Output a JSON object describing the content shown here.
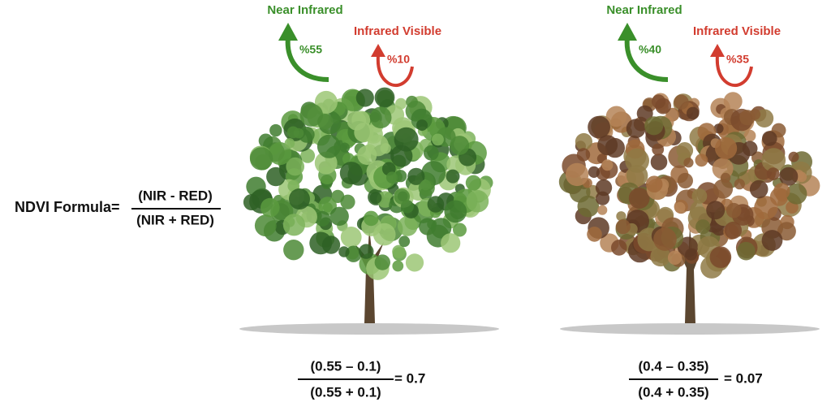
{
  "formula": {
    "label": "NDVI Formula=",
    "numerator": "(NIR  -  RED)",
    "denominator": "(NIR + RED)"
  },
  "panels": [
    {
      "nir": {
        "label": "Near Infrared",
        "percent": "%55"
      },
      "red": {
        "label": "Infrared Visible",
        "percent": "%10"
      },
      "calc": {
        "numerator": "(0.55  –  0.1)",
        "denominator": "(0.55  +  0.1)",
        "result": "= 0.7"
      }
    },
    {
      "nir": {
        "label": "Near Infrared",
        "percent": "%40"
      },
      "red": {
        "label": "Infrared Visible",
        "percent": "%35"
      },
      "calc": {
        "numerator": "(0.4  –  0.35)",
        "denominator": "(0.4 + 0.35)",
        "result": "= 0.07"
      }
    }
  ]
}
